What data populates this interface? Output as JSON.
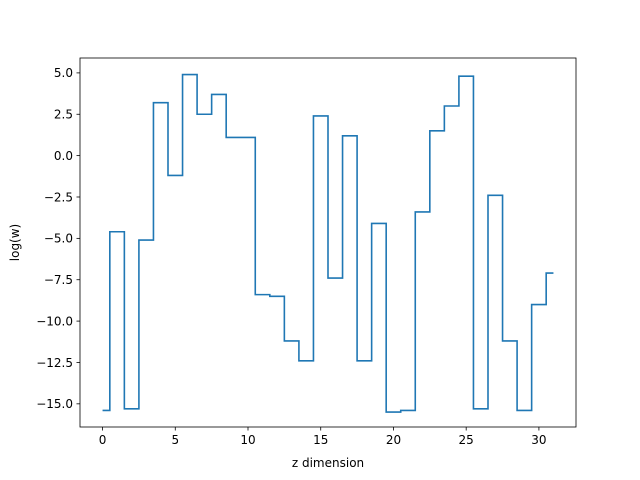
{
  "chart_data": {
    "type": "line",
    "drawstyle": "steps-mid",
    "xlabel": "z dimension",
    "ylabel": "log(w)",
    "xlim": [
      -1.55,
      32.55
    ],
    "ylim": [
      -16.4,
      5.9
    ],
    "xticks": [
      0,
      5,
      10,
      15,
      20,
      25,
      30
    ],
    "xtick_labels": [
      "0",
      "5",
      "10",
      "15",
      "20",
      "25",
      "30"
    ],
    "yticks": [
      5.0,
      2.5,
      0.0,
      -2.5,
      -5.0,
      -7.5,
      -10.0,
      -12.5,
      -15.0
    ],
    "ytick_labels": [
      "5.0",
      "2.5",
      "0.0",
      "−2.5",
      "−5.0",
      "−7.5",
      "−10.0",
      "−12.5",
      "−15.0"
    ],
    "grid": false,
    "line_color": "#1f77b4",
    "x": [
      0,
      1,
      2,
      3,
      4,
      5,
      6,
      7,
      8,
      9,
      10,
      11,
      12,
      13,
      14,
      15,
      16,
      17,
      18,
      19,
      20,
      21,
      22,
      23,
      24,
      25,
      26,
      27,
      28,
      29,
      30,
      31
    ],
    "values": [
      -15.4,
      -4.6,
      -15.3,
      -5.1,
      3.2,
      -1.2,
      4.9,
      2.5,
      3.7,
      1.1,
      1.1,
      -8.4,
      -8.5,
      -11.2,
      -12.4,
      2.4,
      -7.4,
      1.2,
      -12.4,
      -4.1,
      -15.5,
      -15.4,
      -3.4,
      1.5,
      3.0,
      4.8,
      -15.3,
      -2.4,
      -11.2,
      -15.4,
      -9.0,
      -7.1
    ]
  }
}
